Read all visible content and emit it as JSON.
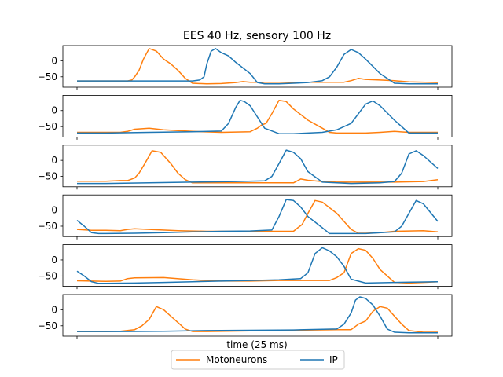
{
  "chart_data": {
    "type": "line",
    "title": "EES 40 Hz, sensory 100 Hz",
    "xlabel": "time (25 ms)",
    "ylabel": "",
    "xlim": [
      0,
      25
    ],
    "ylim": [
      -75,
      40
    ],
    "yticks": [
      0,
      -50
    ],
    "grid": false,
    "legend_position": "bottom-center",
    "legend": [
      {
        "name": "Motoneurons",
        "color": "#ff7f0e"
      },
      {
        "name": "IP",
        "color": "#1f77b4"
      }
    ],
    "panels": [
      {
        "series": [
          {
            "name": "Motoneurons",
            "color": "#ff7f0e",
            "x": [
              0,
              3.0,
              3.5,
              3.8,
              4.0,
              4.3,
              4.6,
              5.0,
              5.5,
              6.0,
              6.5,
              7.0,
              7.5,
              8.0,
              9.0,
              10,
              11,
              11.5,
              12,
              13,
              15,
              17,
              18.5,
              19,
              19.5,
              20,
              21,
              22,
              23,
              25
            ],
            "y": [
              -63,
              -63,
              -63,
              -60,
              -50,
              -30,
              5,
              38,
              30,
              5,
              -10,
              -30,
              -55,
              -70,
              -72,
              -71,
              -68,
              -65,
              -67,
              -67,
              -67,
              -67,
              -67,
              -62,
              -55,
              -58,
              -60,
              -62,
              -66,
              -68
            ]
          },
          {
            "name": "IP",
            "color": "#1f77b4",
            "x": [
              0,
              3,
              5,
              7,
              8.0,
              8.5,
              8.8,
              9.0,
              9.3,
              9.6,
              10,
              10.5,
              11,
              12,
              12.5,
              13,
              14,
              15,
              16,
              17,
              17.5,
              18,
              18.5,
              19,
              19.5,
              20,
              21,
              22,
              23,
              25
            ],
            "y": [
              -63,
              -63,
              -63,
              -63,
              -63,
              -60,
              -50,
              -10,
              30,
              38,
              25,
              15,
              -5,
              -40,
              -68,
              -72,
              -72,
              -70,
              -68,
              -62,
              -50,
              -20,
              20,
              35,
              25,
              5,
              -40,
              -70,
              -72,
              -72
            ]
          }
        ]
      },
      {
        "series": [
          {
            "name": "Motoneurons",
            "color": "#ff7f0e",
            "x": [
              0,
              2,
              3,
              3.5,
              4,
              5,
              6,
              8,
              10,
              12,
              12.5,
              12.8,
              13.1,
              13.5,
              14.0,
              14.5,
              15,
              16,
              17,
              17.5,
              18,
              19,
              20,
              21,
              22,
              23,
              25
            ],
            "y": [
              -68,
              -68,
              -68,
              -65,
              -58,
              -55,
              -60,
              -65,
              -68,
              -66,
              -55,
              -45,
              -40,
              -10,
              32,
              28,
              5,
              -30,
              -55,
              -68,
              -70,
              -70,
              -70,
              -68,
              -65,
              -68,
              -68
            ]
          },
          {
            "name": "IP",
            "color": "#1f77b4",
            "x": [
              0,
              2,
              5,
              8,
              10,
              10.5,
              11,
              11.3,
              11.6,
              12,
              12.5,
              13,
              14,
              14.5,
              15,
              16,
              17,
              18,
              19,
              19.5,
              20,
              20.5,
              21,
              22,
              23,
              25
            ],
            "y": [
              -70,
              -70,
              -68,
              -66,
              -64,
              -40,
              10,
              32,
              28,
              15,
              -20,
              -55,
              -72,
              -72,
              -72,
              -70,
              -68,
              -60,
              -40,
              -10,
              20,
              30,
              15,
              -30,
              -70,
              -70
            ]
          }
        ]
      },
      {
        "series": [
          {
            "name": "Motoneurons",
            "color": "#ff7f0e",
            "x": [
              0,
              2,
              3,
              3.5,
              4.0,
              4.3,
              4.7,
              5.2,
              5.8,
              6.5,
              7.0,
              7.5,
              8.0,
              10,
              12,
              14,
              15,
              15.5,
              16,
              17,
              18,
              20,
              22,
              24,
              25
            ],
            "y": [
              -65,
              -65,
              -63,
              -63,
              -55,
              -40,
              -10,
              30,
              25,
              -10,
              -40,
              -60,
              -70,
              -70,
              -70,
              -70,
              -70,
              -58,
              -62,
              -66,
              -68,
              -68,
              -68,
              -66,
              -60
            ]
          },
          {
            "name": "IP",
            "color": "#1f77b4",
            "x": [
              0,
              2,
              5,
              8,
              11,
              13,
              13.5,
              14,
              14.5,
              15,
              15.5,
              16,
              17,
              19,
              21,
              22,
              22.5,
              23,
              23.5,
              24,
              25
            ],
            "y": [
              -72,
              -72,
              -70,
              -68,
              -66,
              -64,
              -50,
              -10,
              32,
              25,
              5,
              -35,
              -68,
              -72,
              -70,
              -66,
              -40,
              20,
              30,
              15,
              -25
            ]
          }
        ]
      },
      {
        "series": [
          {
            "name": "Motoneurons",
            "color": "#ff7f0e",
            "x": [
              0,
              1,
              2,
              3,
              3.5,
              4,
              5,
              7,
              9,
              12,
              14,
              15,
              15.3,
              15.6,
              16.0,
              16.5,
              17,
              18,
              19,
              19.5,
              20,
              21,
              22,
              24,
              25
            ],
            "y": [
              -60,
              -63,
              -63,
              -64,
              -60,
              -58,
              -60,
              -64,
              -66,
              -66,
              -66,
              -66,
              -55,
              -45,
              -10,
              30,
              25,
              -10,
              -60,
              -72,
              -72,
              -70,
              -66,
              -64,
              -68
            ]
          },
          {
            "name": "IP",
            "color": "#1f77b4",
            "x": [
              0,
              0.5,
              1,
              1.5,
              2,
              4,
              6,
              8,
              10,
              12,
              13.5,
              14,
              14.5,
              15,
              15.5,
              16,
              17,
              17.5,
              18,
              20,
              22,
              22.5,
              23,
              23.5,
              24,
              25
            ],
            "y": [
              -32,
              -50,
              -70,
              -73,
              -73,
              -72,
              -70,
              -68,
              -66,
              -65,
              -62,
              -20,
              33,
              30,
              10,
              -20,
              -55,
              -73,
              -73,
              -73,
              -68,
              -50,
              -10,
              30,
              20,
              -35
            ]
          }
        ]
      },
      {
        "series": [
          {
            "name": "Motoneurons",
            "color": "#ff7f0e",
            "x": [
              0,
              2,
              3,
              3.5,
              4,
              6,
              8,
              10,
              12,
              14,
              16,
              17.5,
              18,
              18.5,
              19,
              19.5,
              20,
              20.5,
              21,
              22,
              23,
              24,
              25
            ],
            "y": [
              -65,
              -67,
              -66,
              -58,
              -56,
              -55,
              -62,
              -66,
              -66,
              -64,
              -64,
              -64,
              -55,
              -40,
              20,
              35,
              30,
              5,
              -30,
              -70,
              -72,
              -70,
              -68
            ]
          },
          {
            "name": "IP",
            "color": "#1f77b4",
            "x": [
              0,
              0.5,
              1,
              1.5,
              2,
              4,
              6,
              8,
              10,
              12,
              14,
              15.5,
              16,
              16.5,
              17,
              17.5,
              18,
              18.5,
              19,
              20,
              22,
              25
            ],
            "y": [
              -35,
              -50,
              -68,
              -73,
              -73,
              -72,
              -70,
              -68,
              -66,
              -64,
              -62,
              -58,
              -40,
              20,
              38,
              28,
              10,
              -20,
              -60,
              -72,
              -70,
              -68
            ]
          }
        ]
      },
      {
        "series": [
          {
            "name": "Motoneurons",
            "color": "#ff7f0e",
            "x": [
              0,
              2,
              3,
              4,
              4.5,
              5.0,
              5.5,
              6,
              6.5,
              7,
              7.5,
              8,
              9,
              12,
              15,
              18,
              19,
              19.5,
              20,
              20.5,
              21,
              21.5,
              22,
              22.5,
              23,
              24,
              25
            ],
            "y": [
              -68,
              -68,
              -67,
              -62,
              -50,
              -30,
              10,
              0,
              -20,
              -40,
              -60,
              -68,
              -68,
              -66,
              -64,
              -62,
              -62,
              -45,
              -35,
              -5,
              10,
              5,
              -20,
              -45,
              -65,
              -70,
              -70
            ]
          },
          {
            "name": "IP",
            "color": "#1f77b4",
            "x": [
              0,
              3,
              6,
              9,
              12,
              15,
              18,
              18.5,
              19,
              19.3,
              19.6,
              20,
              20.5,
              21,
              21.5,
              22,
              23,
              24,
              25
            ],
            "y": [
              -68,
              -68,
              -67,
              -65,
              -64,
              -63,
              -60,
              -45,
              -10,
              30,
              40,
              35,
              15,
              -20,
              -60,
              -70,
              -72,
              -72,
              -72
            ]
          }
        ]
      }
    ]
  }
}
